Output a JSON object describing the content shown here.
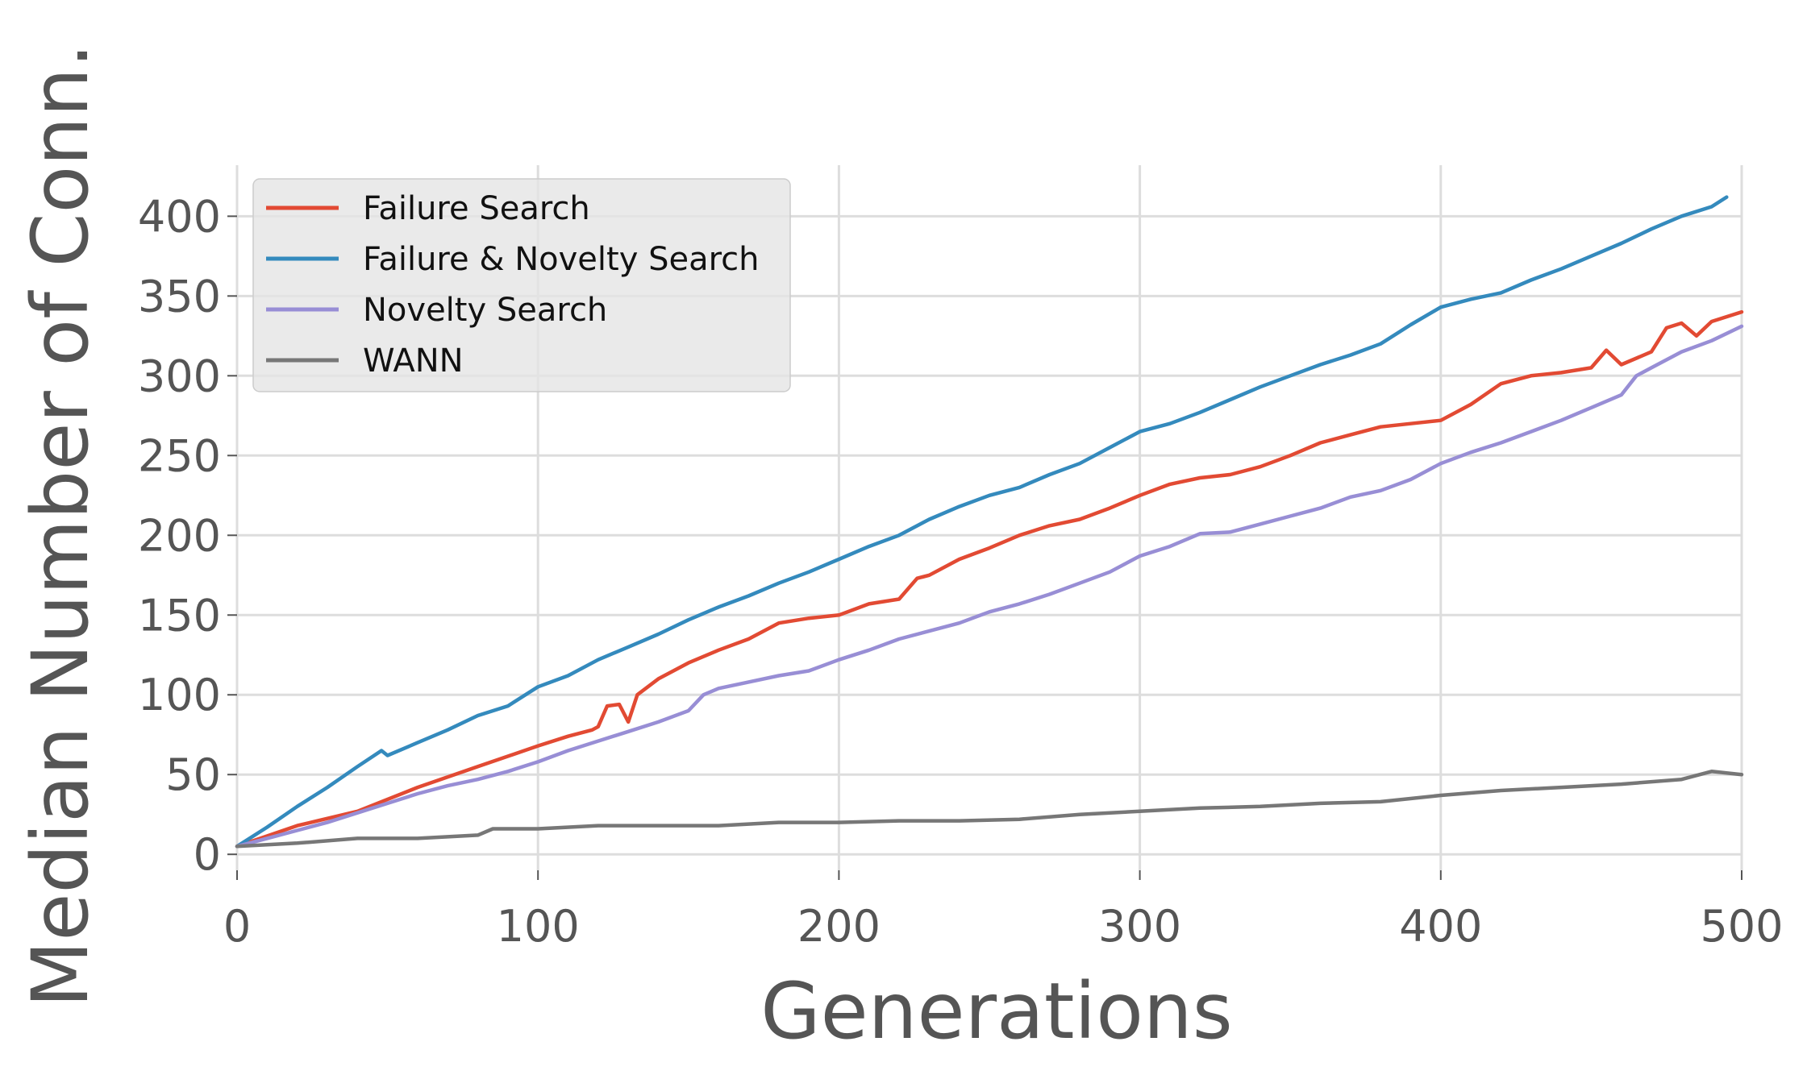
{
  "chart_data": {
    "type": "line",
    "xlabel": "Generations",
    "ylabel": "Median Number of Conn.",
    "xlim": [
      0,
      500
    ],
    "ylim": [
      -10,
      432
    ],
    "xticks": [
      0,
      100,
      200,
      300,
      400,
      500
    ],
    "yticks": [
      0,
      50,
      100,
      150,
      200,
      250,
      300,
      350,
      400
    ],
    "grid": true,
    "legend_position": "top-left",
    "series": [
      {
        "name": "Failure Search",
        "color": "#E24A33",
        "x": [
          0,
          20,
          40,
          60,
          80,
          100,
          110,
          118,
          120,
          123,
          127,
          130,
          133,
          140,
          150,
          160,
          170,
          180,
          190,
          200,
          210,
          220,
          226,
          230,
          240,
          250,
          260,
          270,
          280,
          290,
          300,
          310,
          320,
          330,
          340,
          350,
          360,
          370,
          380,
          390,
          400,
          410,
          420,
          430,
          440,
          450,
          455,
          460,
          470,
          475,
          480,
          485,
          490,
          500
        ],
        "y": [
          5,
          18,
          27,
          42,
          55,
          68,
          74,
          78,
          80,
          93,
          94,
          83,
          100,
          110,
          120,
          128,
          135,
          145,
          148,
          150,
          157,
          160,
          173,
          175,
          185,
          192,
          200,
          206,
          210,
          217,
          225,
          232,
          236,
          238,
          243,
          250,
          258,
          263,
          268,
          270,
          272,
          282,
          295,
          300,
          302,
          305,
          316,
          307,
          315,
          330,
          333,
          325,
          334,
          340
        ]
      },
      {
        "name": "Failure & Novelty Search",
        "color": "#348ABD",
        "x": [
          0,
          10,
          20,
          30,
          40,
          48,
          50,
          60,
          70,
          80,
          90,
          100,
          110,
          120,
          130,
          140,
          150,
          160,
          170,
          180,
          190,
          200,
          210,
          220,
          230,
          240,
          250,
          260,
          270,
          280,
          290,
          300,
          310,
          320,
          330,
          340,
          350,
          360,
          370,
          380,
          390,
          400,
          410,
          420,
          430,
          440,
          450,
          460,
          470,
          480,
          490,
          495
        ],
        "y": [
          5,
          17,
          30,
          42,
          55,
          65,
          62,
          70,
          78,
          87,
          93,
          105,
          112,
          122,
          130,
          138,
          147,
          155,
          162,
          170,
          177,
          185,
          193,
          200,
          210,
          218,
          225,
          230,
          238,
          245,
          255,
          265,
          270,
          277,
          285,
          293,
          300,
          307,
          313,
          320,
          332,
          343,
          348,
          352,
          360,
          367,
          375,
          383,
          392,
          400,
          406,
          412
        ]
      },
      {
        "name": "Novelty Search",
        "color": "#988ED5",
        "x": [
          0,
          10,
          20,
          30,
          40,
          50,
          60,
          70,
          80,
          90,
          100,
          110,
          120,
          130,
          140,
          150,
          155,
          160,
          170,
          180,
          190,
          200,
          210,
          220,
          230,
          240,
          250,
          260,
          270,
          280,
          290,
          300,
          310,
          320,
          330,
          340,
          350,
          360,
          370,
          380,
          390,
          400,
          410,
          420,
          430,
          440,
          450,
          460,
          465,
          470,
          480,
          490,
          500
        ],
        "y": [
          5,
          10,
          15,
          20,
          26,
          32,
          38,
          43,
          47,
          52,
          58,
          65,
          71,
          77,
          83,
          90,
          100,
          104,
          108,
          112,
          115,
          122,
          128,
          135,
          140,
          145,
          152,
          157,
          163,
          170,
          177,
          187,
          193,
          201,
          202,
          207,
          212,
          217,
          224,
          228,
          235,
          245,
          252,
          258,
          265,
          272,
          280,
          288,
          300,
          305,
          315,
          322,
          331
        ]
      },
      {
        "name": "WANN",
        "color": "#777777",
        "x": [
          0,
          20,
          40,
          60,
          80,
          85,
          100,
          120,
          140,
          160,
          180,
          200,
          220,
          240,
          260,
          280,
          300,
          320,
          340,
          360,
          380,
          400,
          420,
          440,
          460,
          480,
          490,
          500
        ],
        "y": [
          5,
          7,
          10,
          10,
          12,
          16,
          16,
          18,
          18,
          18,
          20,
          20,
          21,
          21,
          22,
          25,
          27,
          29,
          30,
          32,
          33,
          37,
          40,
          42,
          44,
          47,
          52,
          50
        ]
      }
    ]
  }
}
